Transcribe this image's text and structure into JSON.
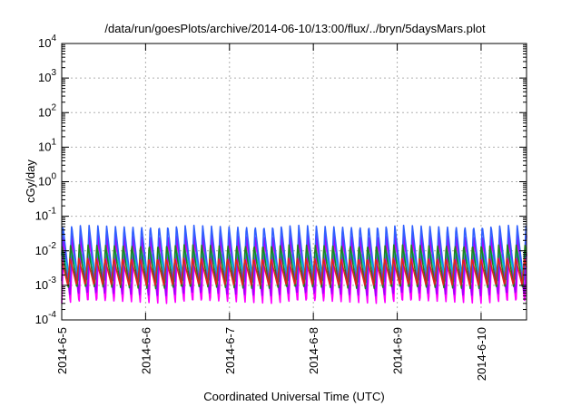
{
  "chart_data": {
    "type": "area",
    "title": "/data/run/goesPlots/archive/2014-06-10/13:00/flux/../bryn/5daysMars.plot",
    "xlabel": "Coordinated Universal Time (UTC)",
    "ylabel": "cGy/day",
    "y_scale": "log",
    "ylim": [
      0.0001,
      10000
    ],
    "xlim": [
      "2014-06-05T00:00",
      "2014-06-10T13:00"
    ],
    "x_ticks": [
      "2014-6-5",
      "2014-6-6",
      "2014-6-7",
      "2014-6-8",
      "2014-6-9",
      "2014-6-10"
    ],
    "y_ticks": [
      {
        "base": "10",
        "exp": "-4"
      },
      {
        "base": "10",
        "exp": "-3"
      },
      {
        "base": "10",
        "exp": "-2"
      },
      {
        "base": "10",
        "exp": "-1"
      },
      {
        "base": "10",
        "exp": "0"
      },
      {
        "base": "10",
        "exp": "1"
      },
      {
        "base": "10",
        "exp": "2"
      },
      {
        "base": "10",
        "exp": "3"
      },
      {
        "base": "10",
        "exp": "4"
      }
    ],
    "grid": true,
    "legend": "none",
    "oscillation_period_hours": 2.5,
    "series": [
      {
        "color": "#ff00ff",
        "low": 0.0003,
        "high": 0.02
      },
      {
        "color": "#a000ff",
        "low": 0.0005,
        "high": 0.03
      },
      {
        "color": "#3060ff",
        "low": 0.0012,
        "high": 0.055
      },
      {
        "color": "#00c8c8",
        "low": 0.002,
        "high": 0.012
      },
      {
        "color": "#208020",
        "low": 0.0008,
        "high": 0.015
      },
      {
        "color": "#e02020",
        "low": 0.001,
        "high": 0.006
      }
    ]
  }
}
